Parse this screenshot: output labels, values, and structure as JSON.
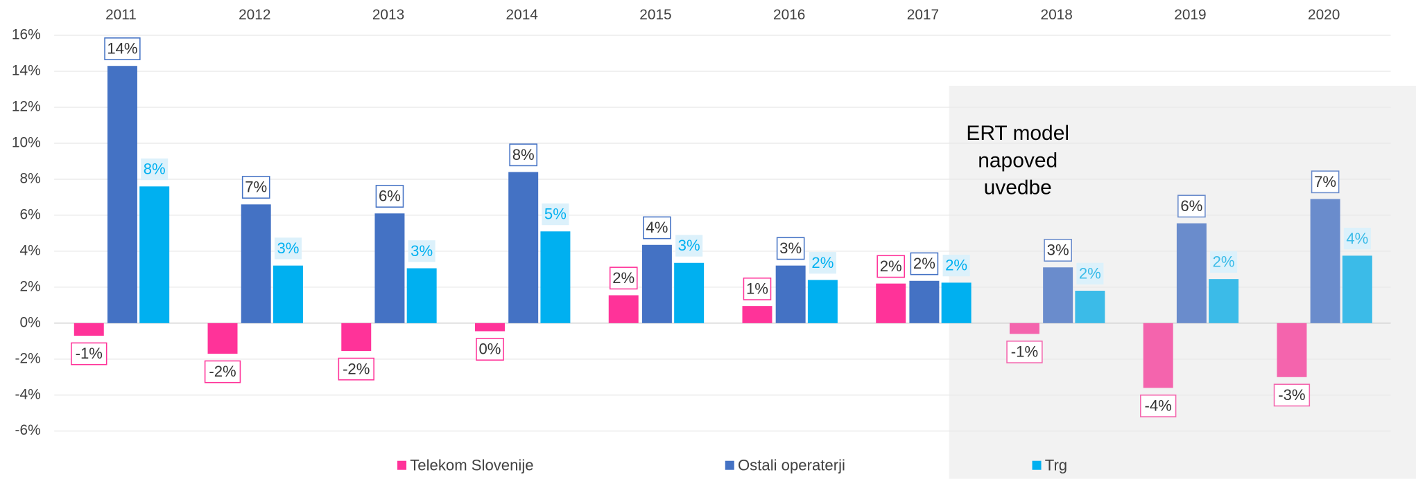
{
  "chart_data": {
    "type": "bar",
    "categories": [
      "2011",
      "2012",
      "2013",
      "2014",
      "2015",
      "2016",
      "2017",
      "2018",
      "2019",
      "2020"
    ],
    "series": [
      {
        "name": "Telekom Slovenije",
        "color": "#ff3399",
        "forecast_color": "#f464ad",
        "values": [
          -0.7,
          -1.7,
          -1.55,
          -0.45,
          1.55,
          0.95,
          2.2,
          -0.6,
          -3.6,
          -3.0
        ],
        "value_labels": [
          "-1%",
          "-2%",
          "-2%",
          "0%",
          "2%",
          "1%",
          "2%",
          "-1%",
          "-4%",
          "-3%"
        ]
      },
      {
        "name": "Ostali operaterji",
        "color": "#4472c4",
        "forecast_color": "#6a8ccc",
        "values": [
          14.3,
          6.6,
          6.1,
          8.4,
          4.35,
          3.2,
          2.35,
          3.1,
          5.55,
          6.9
        ],
        "value_labels": [
          "14%",
          "7%",
          "6%",
          "8%",
          "4%",
          "3%",
          "2%",
          "3%",
          "6%",
          "7%"
        ]
      },
      {
        "name": "Trg",
        "color": "#00b0f0",
        "forecast_color": "#3bbbe8",
        "values": [
          7.6,
          3.2,
          3.05,
          5.1,
          3.35,
          2.4,
          2.25,
          1.8,
          2.45,
          3.75
        ],
        "value_labels": [
          "8%",
          "3%",
          "3%",
          "5%",
          "3%",
          "2%",
          "2%",
          "2%",
          "2%",
          "4%"
        ]
      }
    ],
    "ylim": [
      -6,
      16
    ],
    "yticks": [
      {
        "value": -6,
        "label": "-6%"
      },
      {
        "value": -4,
        "label": "-4%"
      },
      {
        "value": -2,
        "label": "-2%"
      },
      {
        "value": 0,
        "label": "0%"
      },
      {
        "value": 2,
        "label": "2%"
      },
      {
        "value": 4,
        "label": "4%"
      },
      {
        "value": 6,
        "label": "6%"
      },
      {
        "value": 8,
        "label": "8%"
      },
      {
        "value": 10,
        "label": "10%"
      },
      {
        "value": 12,
        "label": "12%"
      },
      {
        "value": 14,
        "label": "14%"
      },
      {
        "value": 16,
        "label": "16%"
      }
    ],
    "grid": true,
    "legend": "bottom",
    "annotation": {
      "lines": [
        "ERT model",
        "napoved",
        "uvedbe"
      ],
      "region": [
        "2018",
        "2020"
      ]
    }
  }
}
